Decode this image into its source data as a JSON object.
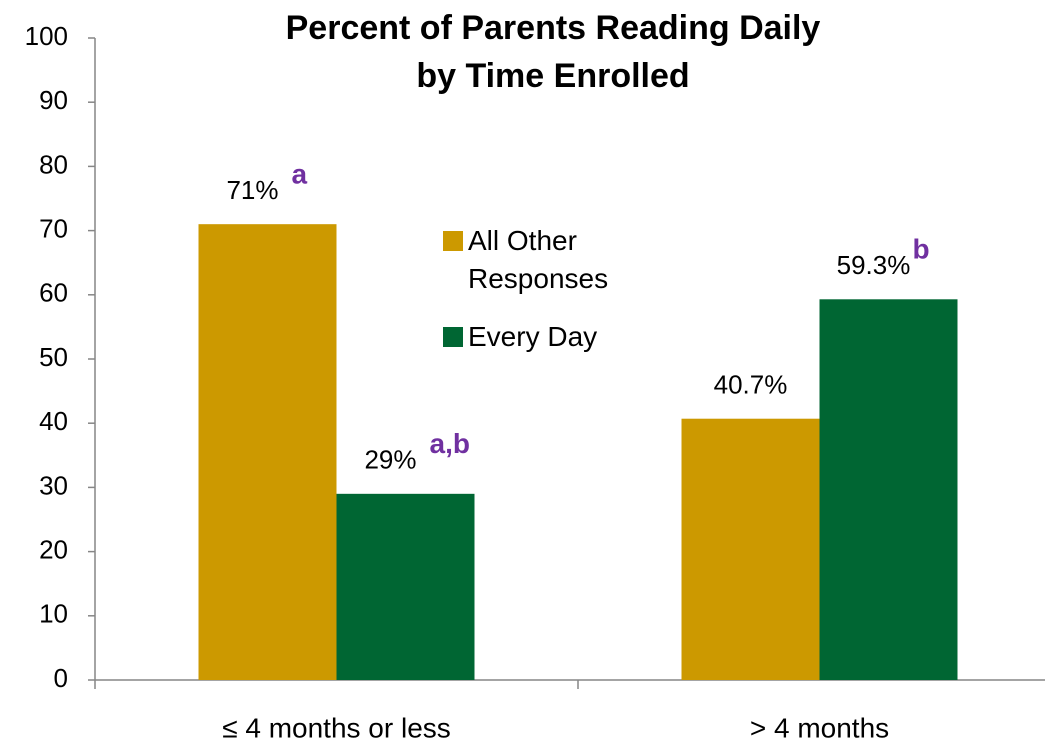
{
  "chart_data": {
    "type": "bar",
    "title": [
      "Percent of Parents Reading Daily",
      "by Time Enrolled"
    ],
    "categories": [
      "≤ 4 months or less",
      "> 4 months"
    ],
    "series": [
      {
        "name": "All Other Responses",
        "color": "#cc9900",
        "values": [
          71,
          40.7
        ],
        "value_labels": [
          "71%",
          "40.7%"
        ],
        "annotations": [
          "a",
          null
        ]
      },
      {
        "name": "Every Day",
        "color": "#006633",
        "values": [
          29,
          59.3
        ],
        "value_labels": [
          "29%",
          "59.3%"
        ],
        "annotations": [
          "a,b",
          "b"
        ]
      }
    ],
    "annotation_color": "#7030a0",
    "ylim": [
      0,
      100
    ],
    "yticks": [
      0,
      10,
      20,
      30,
      40,
      50,
      60,
      70,
      80,
      90,
      100
    ],
    "grid": false,
    "legend": "center"
  }
}
